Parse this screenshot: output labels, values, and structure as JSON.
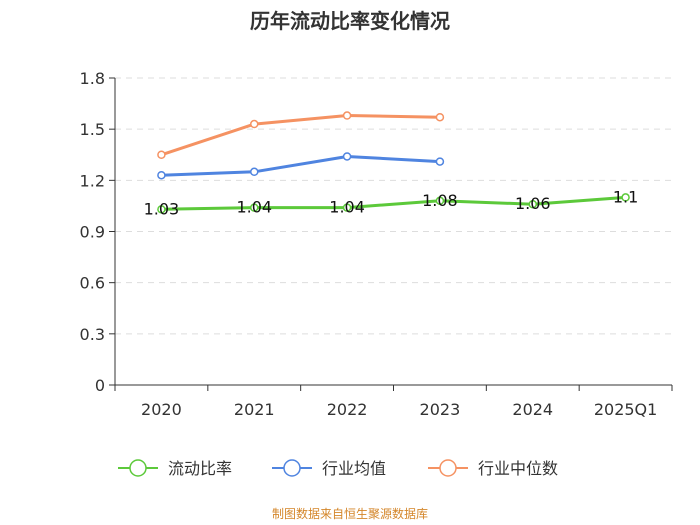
{
  "chart_data": {
    "type": "line",
    "title": "历年流动比率变化情况",
    "categories": [
      "2020",
      "2021",
      "2022",
      "2023",
      "2024",
      "2025Q1"
    ],
    "ylim": [
      0,
      1.8
    ],
    "yticks": [
      "0",
      "0.3",
      "0.6",
      "0.9",
      "1.2",
      "1.5",
      "1.8"
    ],
    "grid": true,
    "legend_position": "bottom",
    "series": [
      {
        "name": "流动比率",
        "color": "#5cc93a",
        "values": [
          1.03,
          1.04,
          1.04,
          1.08,
          1.06,
          1.1
        ],
        "labels": [
          "1.03",
          "1.04",
          "1.04",
          "1.08",
          "1.06",
          "1.1"
        ]
      },
      {
        "name": "行业均值",
        "color": "#4f84e0",
        "values": [
          1.23,
          1.25,
          1.34,
          1.31,
          null,
          null
        ]
      },
      {
        "name": "行业中位数",
        "color": "#f59262",
        "values": [
          1.35,
          1.53,
          1.58,
          1.57,
          null,
          null
        ]
      }
    ]
  },
  "source_text": "制图数据来自恒生聚源数据库",
  "source_color": "#d4862a"
}
